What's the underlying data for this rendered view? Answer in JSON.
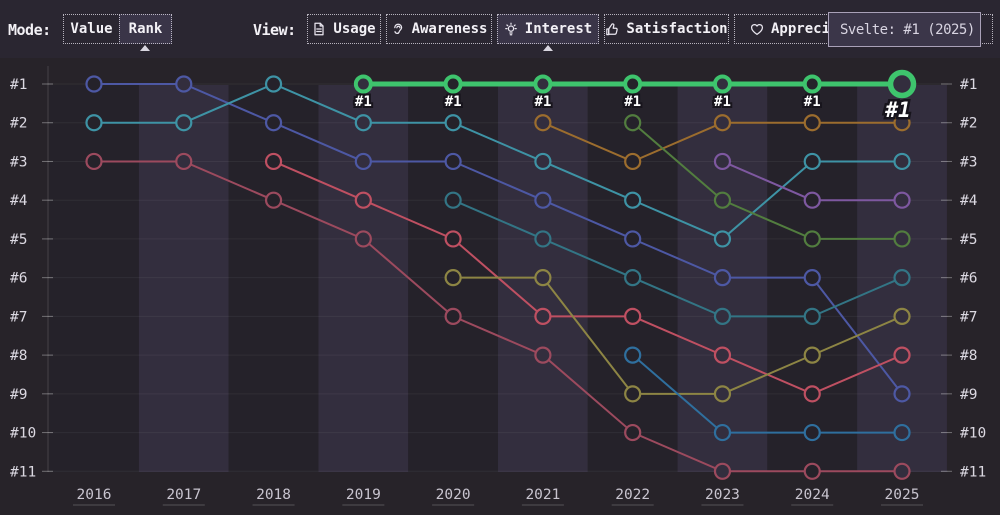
{
  "toolbar": {
    "mode_label": "Mode:",
    "modes": [
      {
        "label": "Value",
        "selected": false
      },
      {
        "label": "Rank",
        "selected": true
      }
    ],
    "view_label": "View:",
    "views": [
      {
        "label": "Usage",
        "icon": "document-icon",
        "selected": false
      },
      {
        "label": "Awareness",
        "icon": "ear-icon",
        "selected": false
      },
      {
        "label": "Interest",
        "icon": "lightbulb-icon",
        "selected": true
      },
      {
        "label": "Satisfaction",
        "icon": "thumbs-up-icon",
        "selected": false
      },
      {
        "label": "Appreciation",
        "icon": "heart-icon",
        "selected": false
      }
    ]
  },
  "tooltip": {
    "text": "Svelte: #1 (2025)"
  },
  "colors": {
    "background": "#272329",
    "toolbar_bg": "#2a2631",
    "band_odd": "#332e3e",
    "band_even": "#25222a",
    "highlight_green": "#3ec46d",
    "selected_button_bg": "#3a3548"
  },
  "chart_data": {
    "type": "line",
    "subtype": "bump-rank-chart",
    "x": [
      2016,
      2017,
      2018,
      2019,
      2020,
      2021,
      2022,
      2023,
      2024,
      2025
    ],
    "x_tick_labels": [
      "2016",
      "2017",
      "2018",
      "2019",
      "2020",
      "2021",
      "2022",
      "2023",
      "2024",
      "2025"
    ],
    "y_tick_labels": [
      "#1",
      "#2",
      "#3",
      "#4",
      "#5",
      "#6",
      "#7",
      "#8",
      "#9",
      "#10",
      "#11"
    ],
    "y_axis_sides": "both",
    "ylim": [
      1,
      11
    ],
    "grid": "horizontal",
    "legend": "none",
    "series": [
      {
        "name": "svelte",
        "color": "#3ec46d",
        "highlight": true,
        "point_label": "#1",
        "end_label": "#1",
        "points": [
          [
            2019,
            1
          ],
          [
            2020,
            1
          ],
          [
            2021,
            1
          ],
          [
            2022,
            1
          ],
          [
            2023,
            1
          ],
          [
            2024,
            1
          ],
          [
            2025,
            1
          ]
        ]
      },
      {
        "name": "series-indigo",
        "color": "#4d58a4",
        "highlight": false,
        "points": [
          [
            2016,
            1
          ],
          [
            2017,
            1
          ],
          [
            2018,
            2
          ],
          [
            2019,
            3
          ],
          [
            2020,
            3
          ],
          [
            2021,
            4
          ],
          [
            2022,
            5
          ],
          [
            2023,
            6
          ],
          [
            2024,
            6
          ],
          [
            2025,
            9
          ]
        ]
      },
      {
        "name": "series-teal",
        "color": "#3e93a5",
        "highlight": false,
        "points": [
          [
            2016,
            2
          ],
          [
            2017,
            2
          ],
          [
            2018,
            1
          ],
          [
            2019,
            2
          ],
          [
            2020,
            2
          ],
          [
            2021,
            3
          ],
          [
            2022,
            4
          ],
          [
            2023,
            5
          ],
          [
            2024,
            3
          ],
          [
            2025,
            3
          ]
        ]
      },
      {
        "name": "series-maroon",
        "color": "#9c4a5e",
        "highlight": false,
        "points": [
          [
            2016,
            3
          ],
          [
            2017,
            3
          ],
          [
            2018,
            4
          ],
          [
            2019,
            5
          ],
          [
            2020,
            7
          ],
          [
            2021,
            8
          ],
          [
            2022,
            10
          ],
          [
            2023,
            11
          ],
          [
            2024,
            11
          ],
          [
            2025,
            11
          ]
        ]
      },
      {
        "name": "series-red",
        "color": "#bf5062",
        "highlight": false,
        "points": [
          [
            2018,
            3
          ],
          [
            2019,
            4
          ],
          [
            2020,
            5
          ],
          [
            2021,
            7
          ],
          [
            2022,
            7
          ],
          [
            2023,
            8
          ],
          [
            2024,
            9
          ],
          [
            2025,
            8
          ]
        ]
      },
      {
        "name": "series-teal-dark",
        "color": "#337585",
        "highlight": false,
        "points": [
          [
            2020,
            4
          ],
          [
            2021,
            5
          ],
          [
            2022,
            6
          ],
          [
            2023,
            7
          ],
          [
            2024,
            7
          ],
          [
            2025,
            6
          ]
        ]
      },
      {
        "name": "series-olive",
        "color": "#8d8544",
        "highlight": false,
        "points": [
          [
            2020,
            6
          ],
          [
            2021,
            6
          ],
          [
            2022,
            9
          ],
          [
            2023,
            9
          ],
          [
            2024,
            8
          ],
          [
            2025,
            7
          ]
        ]
      },
      {
        "name": "series-amber",
        "color": "#9c6d2e",
        "highlight": false,
        "points": [
          [
            2021,
            2
          ],
          [
            2022,
            3
          ],
          [
            2023,
            2
          ],
          [
            2024,
            2
          ],
          [
            2025,
            2
          ]
        ]
      },
      {
        "name": "series-green",
        "color": "#527d3f",
        "highlight": false,
        "points": [
          [
            2022,
            2
          ],
          [
            2023,
            4
          ],
          [
            2024,
            5
          ],
          [
            2025,
            5
          ]
        ]
      },
      {
        "name": "series-blue",
        "color": "#2f6f9e",
        "highlight": false,
        "points": [
          [
            2022,
            8
          ],
          [
            2023,
            10
          ],
          [
            2024,
            10
          ],
          [
            2025,
            10
          ]
        ]
      },
      {
        "name": "series-purple",
        "color": "#7e58a0",
        "highlight": false,
        "points": [
          [
            2023,
            3
          ],
          [
            2024,
            4
          ],
          [
            2025,
            4
          ]
        ]
      }
    ]
  }
}
